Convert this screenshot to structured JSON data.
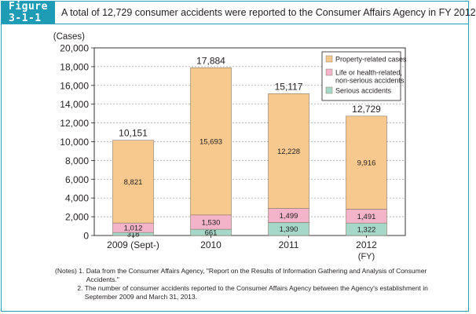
{
  "figure": {
    "label": "Figure 3-1-1",
    "title": "A total of 12,729 consumer accidents were reported to the Consumer Affairs Agency in FY 2012"
  },
  "chart_data": {
    "type": "bar",
    "stacked": true,
    "y_unit_label": "(Cases)",
    "ylim": [
      0,
      20000
    ],
    "y_ticks": [
      "0",
      "2,000",
      "4,000",
      "6,000",
      "8,000",
      "10,000",
      "12,000",
      "14,000",
      "16,000",
      "18,000",
      "20,000"
    ],
    "categories": [
      "2009 (Sept-)",
      "2010",
      "2011",
      "2012"
    ],
    "x_sublabel": "(FY)",
    "series": [
      {
        "name": "Serious accidents",
        "values": [
          318,
          661,
          1390,
          1322
        ],
        "labels": [
          "318",
          "661",
          "1,390",
          "1,322"
        ],
        "color": "#a6d8c9"
      },
      {
        "name": "Life or health-related, non-serious accidents",
        "values": [
          1012,
          1530,
          1499,
          1491
        ],
        "labels": [
          "1,012",
          "1,530",
          "1,499",
          "1,491"
        ],
        "color": "#f3b3c9"
      },
      {
        "name": "Property-related cases",
        "values": [
          8821,
          15693,
          12228,
          9916
        ],
        "labels": [
          "8,821",
          "15,693",
          "12,228",
          "9,916"
        ],
        "color": "#f8c98f"
      }
    ],
    "totals": [
      10151,
      17884,
      15117,
      12729
    ],
    "total_labels": [
      "10,151",
      "17,884",
      "15,117",
      "12,729"
    ],
    "legend": {
      "placement": "top-right",
      "items": [
        {
          "label": "Property-related cases",
          "color": "#f8c98f"
        },
        {
          "label_lines": [
            "Life or health-related,",
            "non-serious accidents"
          ],
          "color": "#f3b3c9"
        },
        {
          "label": "Serious accidents",
          "color": "#a6d8c9"
        }
      ]
    },
    "grid": "dashed-horizontal"
  },
  "notes": [
    {
      "lead": "(Notes) 1. ",
      "text": "Data from the Consumer Affairs Agency, \"Report on the Results of Information Gathering and Analysis of Consumer Accidents.\""
    },
    {
      "lead": "            2. ",
      "text": "The number of consumer accidents reported to the Consumer Affairs Agency between the Agency's establishment in September 2009 and March 31, 2013."
    }
  ]
}
